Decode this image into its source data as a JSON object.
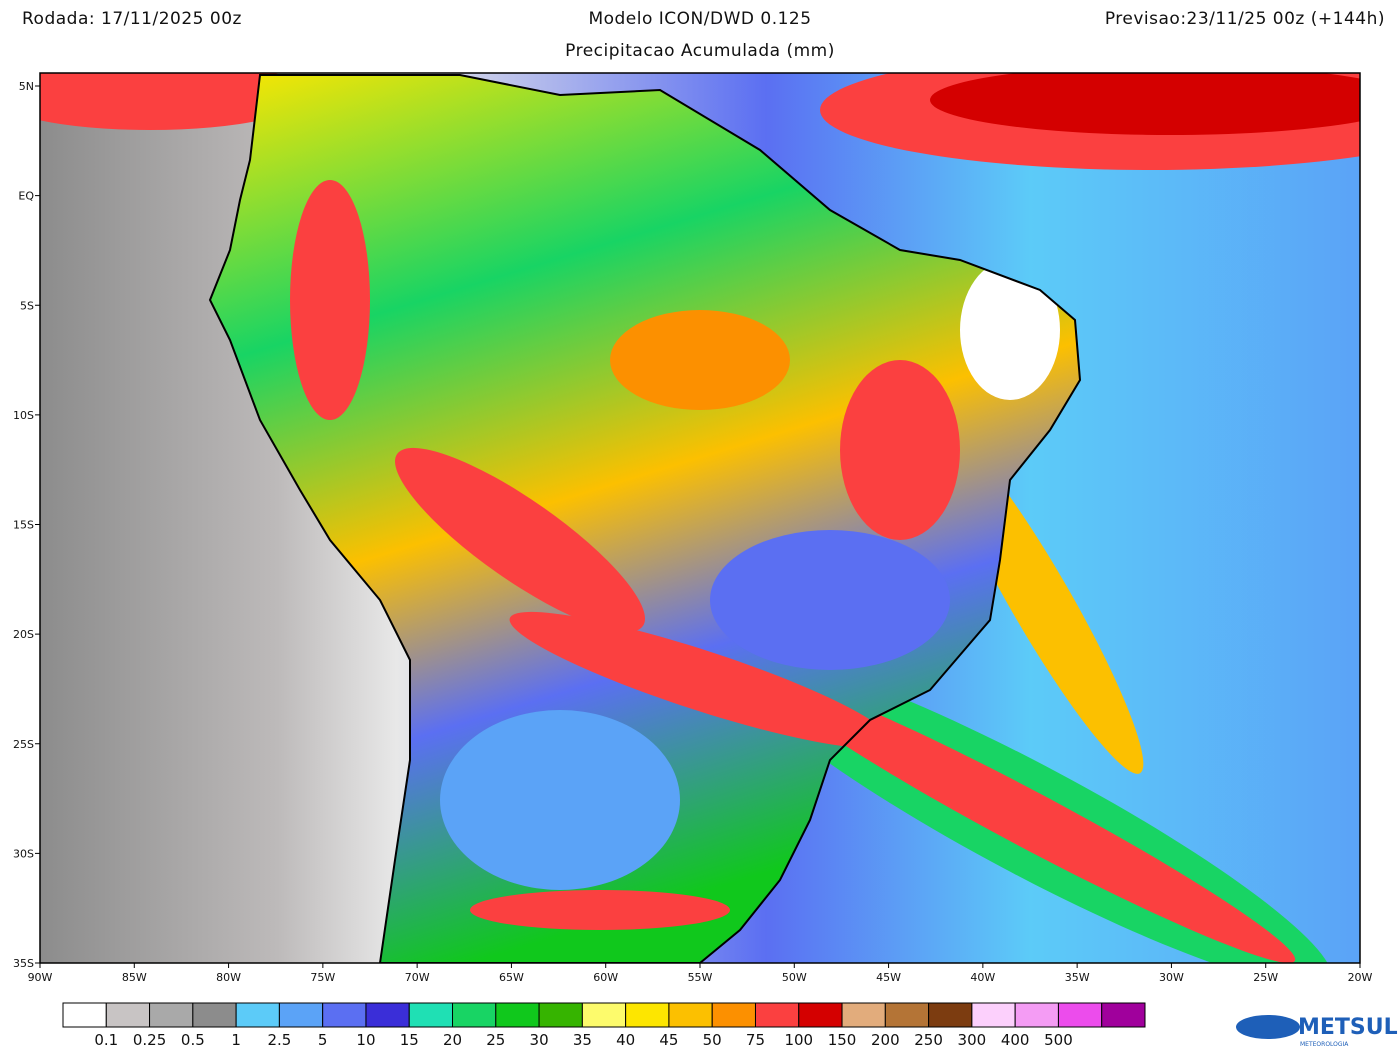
{
  "header": {
    "run": "Rodada: 17/11/2025 00z",
    "model": "Modelo ICON/DWD 0.125",
    "forecast": "Previsao:23/11/25 00z (+144h)",
    "subtitle": "Precipitacao Acumulada (mm)"
  },
  "map": {
    "lat_labels": [
      "5N",
      "EQ",
      "5S",
      "10S",
      "15S",
      "20S",
      "25S",
      "30S",
      "35S"
    ],
    "lon_labels": [
      "90W",
      "85W",
      "80W",
      "75W",
      "70W",
      "65W",
      "60W",
      "55W",
      "50W",
      "45W",
      "40W",
      "35W",
      "30W",
      "25W",
      "20W"
    ]
  },
  "legend": {
    "colors": [
      "#ffffff",
      "#c8c4c4",
      "#a9a9a9",
      "#8c8c8c",
      "#5ccbf8",
      "#5ba3f7",
      "#5b6ff2",
      "#3a2ed8",
      "#1fe0b4",
      "#18d464",
      "#10c81c",
      "#36b400",
      "#fdfb6c",
      "#fde600",
      "#fcc000",
      "#fc9000",
      "#fb4040",
      "#d40000",
      "#e2ac7c",
      "#b47436",
      "#7c3c10",
      "#fcd0fc",
      "#f49cf4",
      "#ec4cec",
      "#a0009c"
    ],
    "labels": [
      "0.1",
      "0.25",
      "0.5",
      "1",
      "2.5",
      "5",
      "10",
      "15",
      "20",
      "25",
      "30",
      "35",
      "40",
      "45",
      "50",
      "75",
      "100",
      "150",
      "200",
      "250",
      "300",
      "400",
      "500"
    ]
  },
  "logo": {
    "name": "METSUL",
    "tagline": "METEOROLOGIA"
  }
}
